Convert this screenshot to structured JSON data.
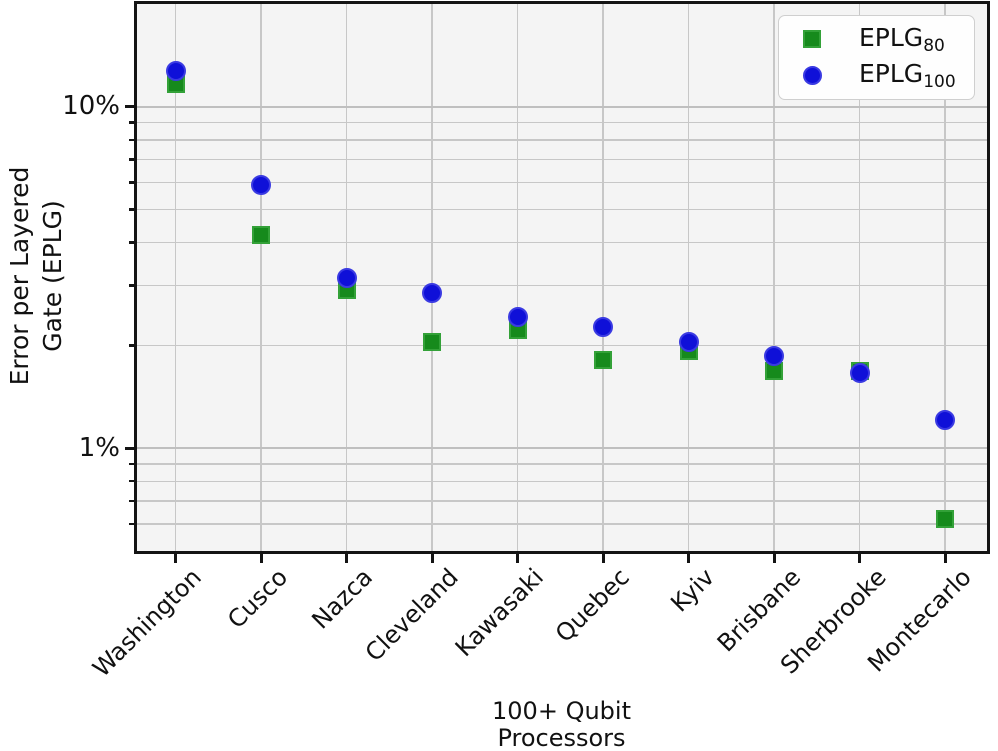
{
  "chart_data": {
    "type": "scatter",
    "categories": [
      "Washington",
      "Cusco",
      "Nazca",
      "Cleveland",
      "Kawasaki",
      "Quebec",
      "Kyiv",
      "Brisbane",
      "Sherbrooke",
      "Montecarlo"
    ],
    "series": [
      {
        "name": "eplg80",
        "label_base": "EPLG",
        "label_sub": "80",
        "marker": "square",
        "color": "#168a1c",
        "values_percent": [
          11.7,
          4.2,
          2.9,
          2.05,
          2.22,
          1.81,
          1.92,
          1.68,
          1.68,
          0.62
        ]
      },
      {
        "name": "eplg100",
        "label_base": "EPLG",
        "label_sub": "100",
        "marker": "circle",
        "color": "#0f10d8",
        "values_percent": [
          12.7,
          5.9,
          3.15,
          2.85,
          2.42,
          2.27,
          2.05,
          1.86,
          1.66,
          1.21
        ]
      }
    ],
    "xlabel_lines": [
      "100+ Qubit",
      "Processors"
    ],
    "ylabel_lines": [
      "Error per Layered",
      "Gate (EPLG)"
    ],
    "yscale": "log",
    "ylim_percent": [
      0.5,
      20
    ],
    "ytick_values_percent": [
      10,
      1
    ],
    "ytick_labels": [
      "10%",
      "1%"
    ],
    "yminor_gridlines_percent": [
      9,
      8,
      7,
      6,
      5,
      4,
      3,
      2,
      0.9,
      0.8,
      0.7,
      0.6
    ],
    "grid": true,
    "legend_position": "upper right"
  },
  "style": {
    "plot_background": "#f4f4f4",
    "grid_color": "#c7c7c7",
    "spine_color": "#141414",
    "green": "#168a1c",
    "blue": "#0f10d8"
  }
}
